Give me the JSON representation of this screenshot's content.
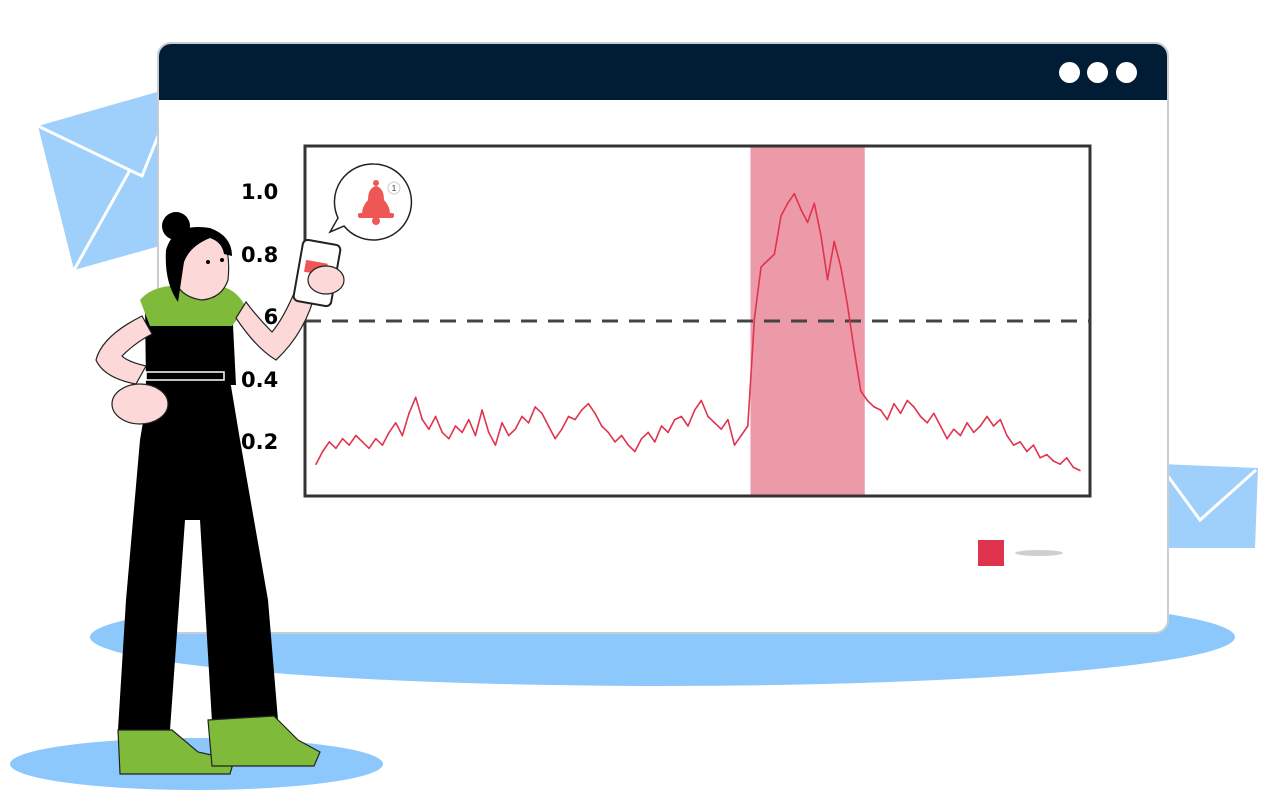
{
  "window": {
    "controls": [
      "dot",
      "dot",
      "dot"
    ]
  },
  "chart_data": {
    "type": "line",
    "title": "",
    "xlabel": "",
    "ylabel": "",
    "ylim": [
      0.0,
      1.1
    ],
    "y_ticks": [
      "0.2",
      "0.4",
      "0.6",
      "0.8",
      "1.0"
    ],
    "threshold": 0.55,
    "threshold_style": "dashed",
    "highlight_region": {
      "start_index": 66,
      "end_index": 82,
      "color": "#ec9aa7"
    },
    "series": [
      {
        "color": "#e0344e",
        "values": [
          0.1,
          0.14,
          0.17,
          0.15,
          0.18,
          0.16,
          0.19,
          0.17,
          0.15,
          0.18,
          0.16,
          0.2,
          0.23,
          0.19,
          0.26,
          0.31,
          0.24,
          0.21,
          0.25,
          0.2,
          0.18,
          0.22,
          0.2,
          0.24,
          0.19,
          0.27,
          0.2,
          0.16,
          0.23,
          0.19,
          0.21,
          0.25,
          0.23,
          0.28,
          0.26,
          0.22,
          0.18,
          0.21,
          0.25,
          0.24,
          0.27,
          0.29,
          0.26,
          0.22,
          0.2,
          0.17,
          0.19,
          0.16,
          0.14,
          0.18,
          0.2,
          0.17,
          0.22,
          0.2,
          0.24,
          0.25,
          0.22,
          0.27,
          0.3,
          0.25,
          0.23,
          0.21,
          0.24,
          0.16,
          0.19,
          0.22,
          0.56,
          0.72,
          0.74,
          0.76,
          0.88,
          0.92,
          0.95,
          0.9,
          0.86,
          0.92,
          0.82,
          0.68,
          0.8,
          0.72,
          0.6,
          0.46,
          0.33,
          0.3,
          0.28,
          0.27,
          0.24,
          0.29,
          0.26,
          0.3,
          0.28,
          0.25,
          0.23,
          0.26,
          0.22,
          0.18,
          0.21,
          0.19,
          0.23,
          0.2,
          0.22,
          0.25,
          0.22,
          0.24,
          0.19,
          0.16,
          0.17,
          0.14,
          0.16,
          0.12,
          0.13,
          0.11,
          0.1,
          0.12,
          0.09,
          0.08
        ]
      }
    ]
  },
  "notification": {
    "badge_count": "1",
    "accent": "#ef5756"
  },
  "colors": {
    "titlebar": "#001d35",
    "line": "#e0344e",
    "highlight": "#ec9aa7",
    "platform": "#8cc8fb",
    "envelope": "#9fd0fb",
    "shirt": "#80ba3b",
    "overalls": "#000000",
    "skin": "#fcd8d8"
  }
}
